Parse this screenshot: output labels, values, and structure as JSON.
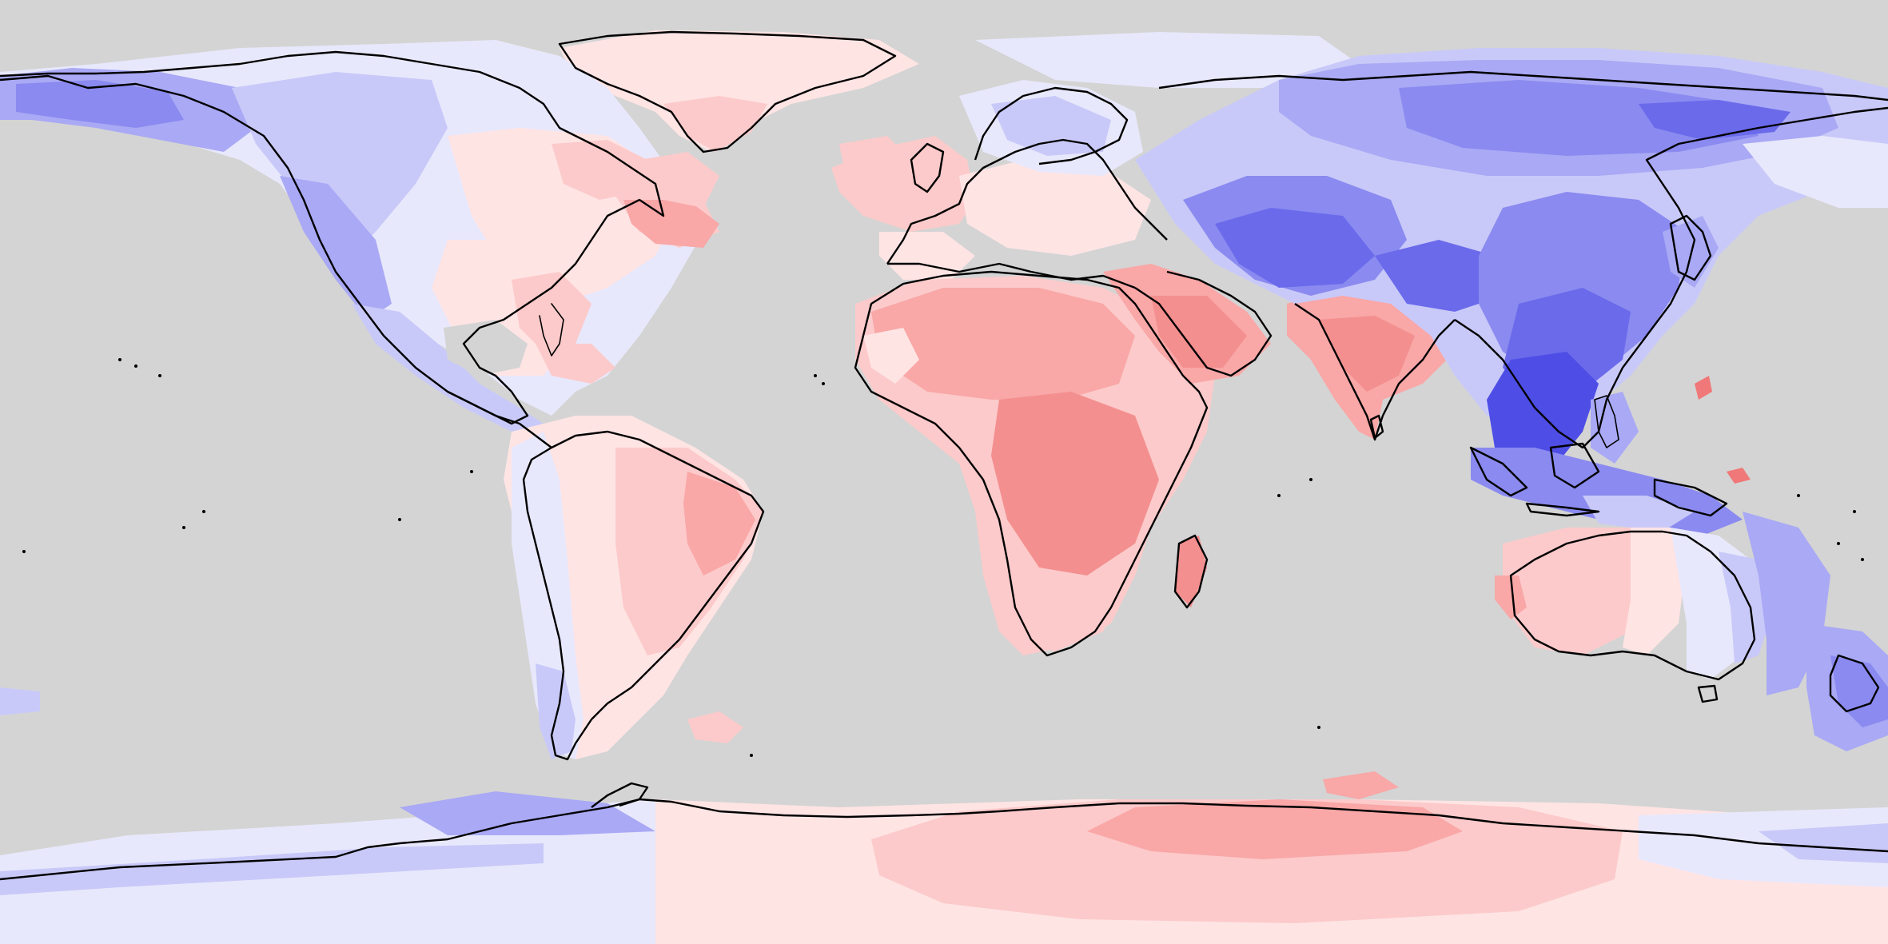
{
  "map": {
    "projection": "equirectangular",
    "ocean_color": "#d4d4d4",
    "coastline_color": "#000000",
    "color_scale": {
      "positive": [
        "#ffe4e4",
        "#fccaca",
        "#f9a7a7",
        "#f48f8f",
        "#f07878"
      ],
      "negative": [
        "#e8e8fc",
        "#c9c9f9",
        "#a9a9f5",
        "#8a8af0",
        "#6a6aeb",
        "#4e4ee6"
      ]
    },
    "regions": [
      {
        "name": "north-america-west",
        "sign": "negative"
      },
      {
        "name": "north-america-east",
        "sign": "positive"
      },
      {
        "name": "greenland",
        "sign": "positive"
      },
      {
        "name": "south-america",
        "sign": "positive"
      },
      {
        "name": "patagonia",
        "sign": "negative"
      },
      {
        "name": "europe-west",
        "sign": "positive"
      },
      {
        "name": "scandinavia",
        "sign": "negative"
      },
      {
        "name": "africa",
        "sign": "positive"
      },
      {
        "name": "arabia",
        "sign": "positive"
      },
      {
        "name": "india",
        "sign": "positive"
      },
      {
        "name": "central-asia",
        "sign": "negative"
      },
      {
        "name": "east-asia",
        "sign": "negative"
      },
      {
        "name": "southeast-asia",
        "sign": "negative"
      },
      {
        "name": "siberia",
        "sign": "negative"
      },
      {
        "name": "australia-west",
        "sign": "positive"
      },
      {
        "name": "australia-east",
        "sign": "negative"
      },
      {
        "name": "new-zealand",
        "sign": "negative"
      },
      {
        "name": "antarctica-east",
        "sign": "positive"
      },
      {
        "name": "antarctica-west",
        "sign": "negative"
      }
    ]
  }
}
